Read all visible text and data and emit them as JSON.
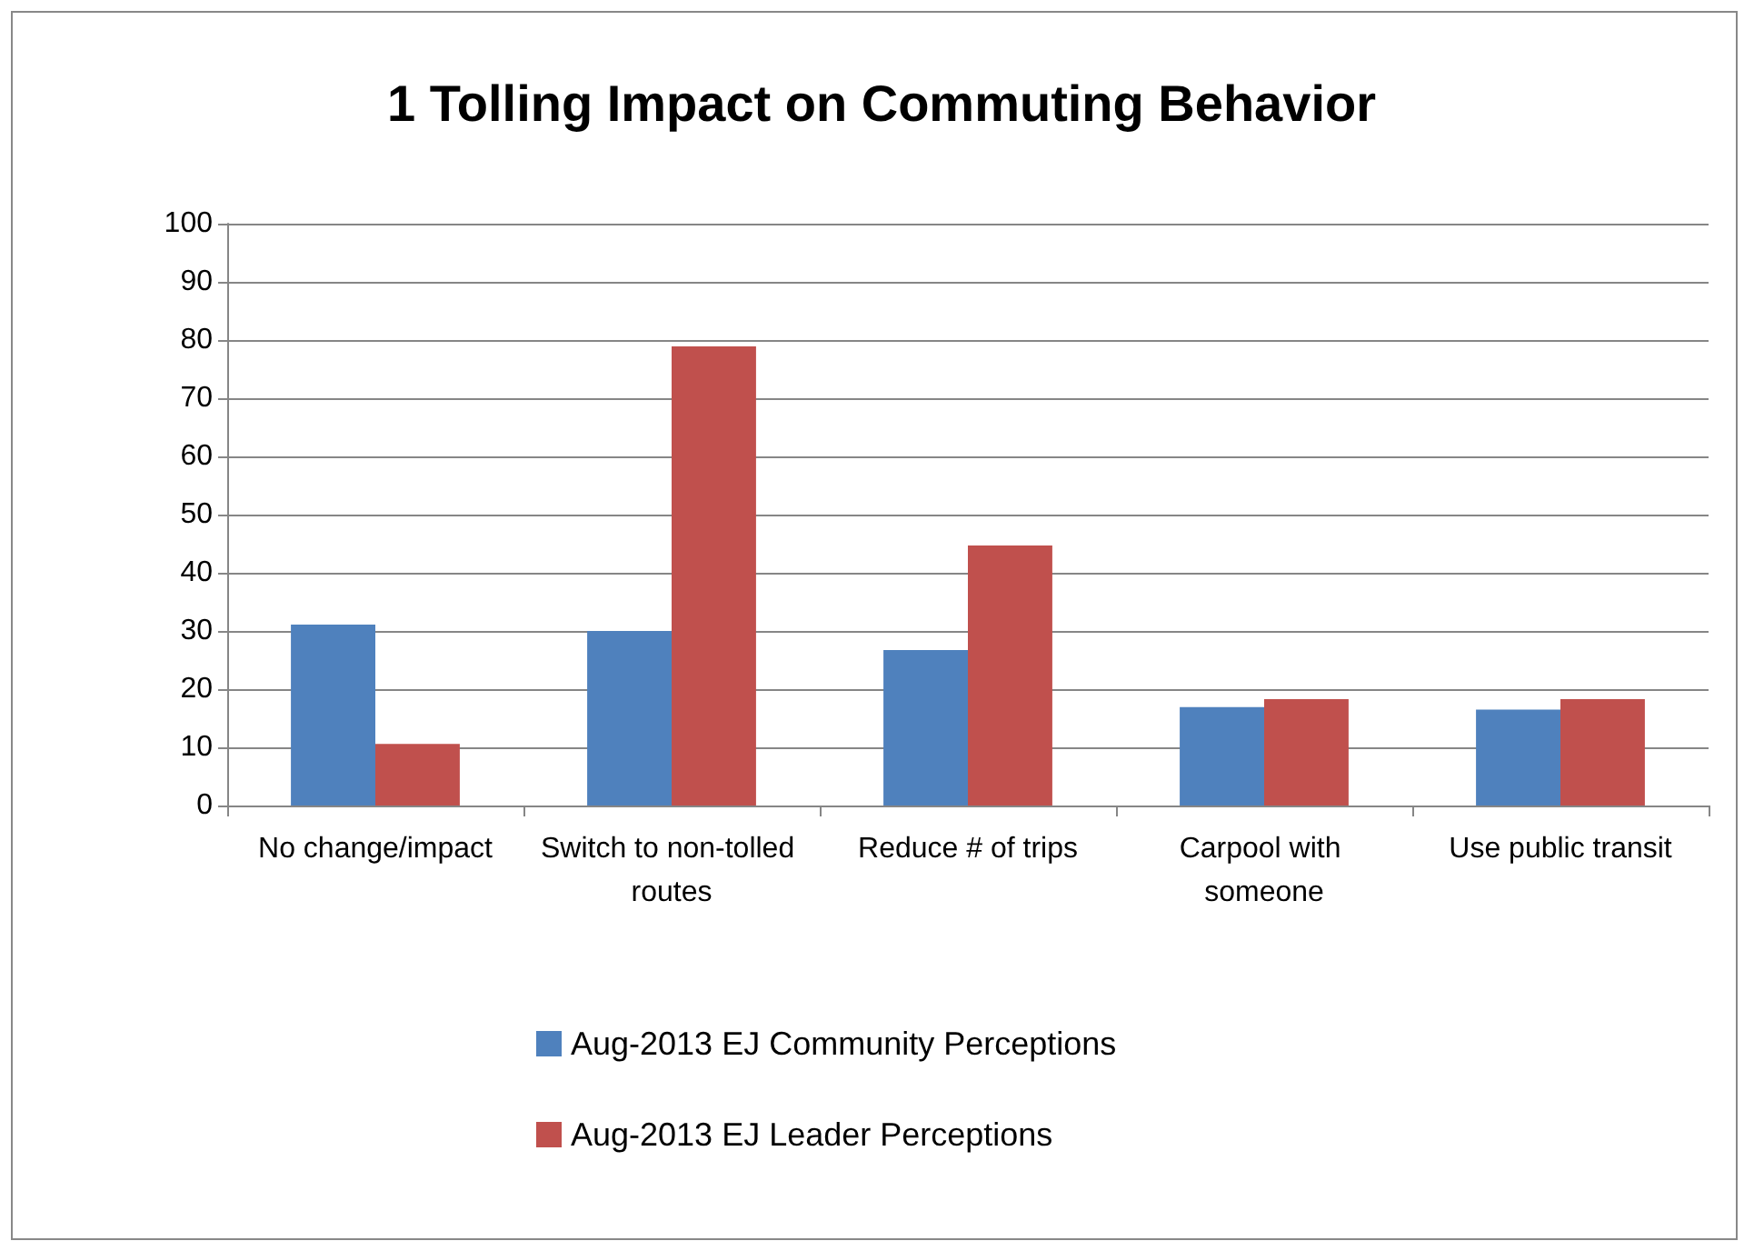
{
  "chart_data": {
    "type": "bar",
    "title": "1 Tolling Impact on Commuting Behavior",
    "categories": [
      "No change/impact",
      "Switch to non-tolled routes",
      "Reduce # of trips",
      "Carpool with someone",
      "Use public transit"
    ],
    "series": [
      {
        "name": "Aug-2013 EJ Community Perceptions",
        "color": "#4f81bd",
        "values": [
          31.1,
          30,
          26.7,
          16.9,
          16.5
        ]
      },
      {
        "name": "Aug-2013 EJ Leader Perceptions",
        "color": "#c0504d",
        "values": [
          10.6,
          78.9,
          44.7,
          18.3,
          18.3
        ]
      }
    ],
    "ylim": [
      0,
      100
    ],
    "yticks": [
      0,
      10,
      20,
      30,
      40,
      50,
      60,
      70,
      80,
      90,
      100
    ],
    "grid": "y",
    "legend": "bottom"
  }
}
